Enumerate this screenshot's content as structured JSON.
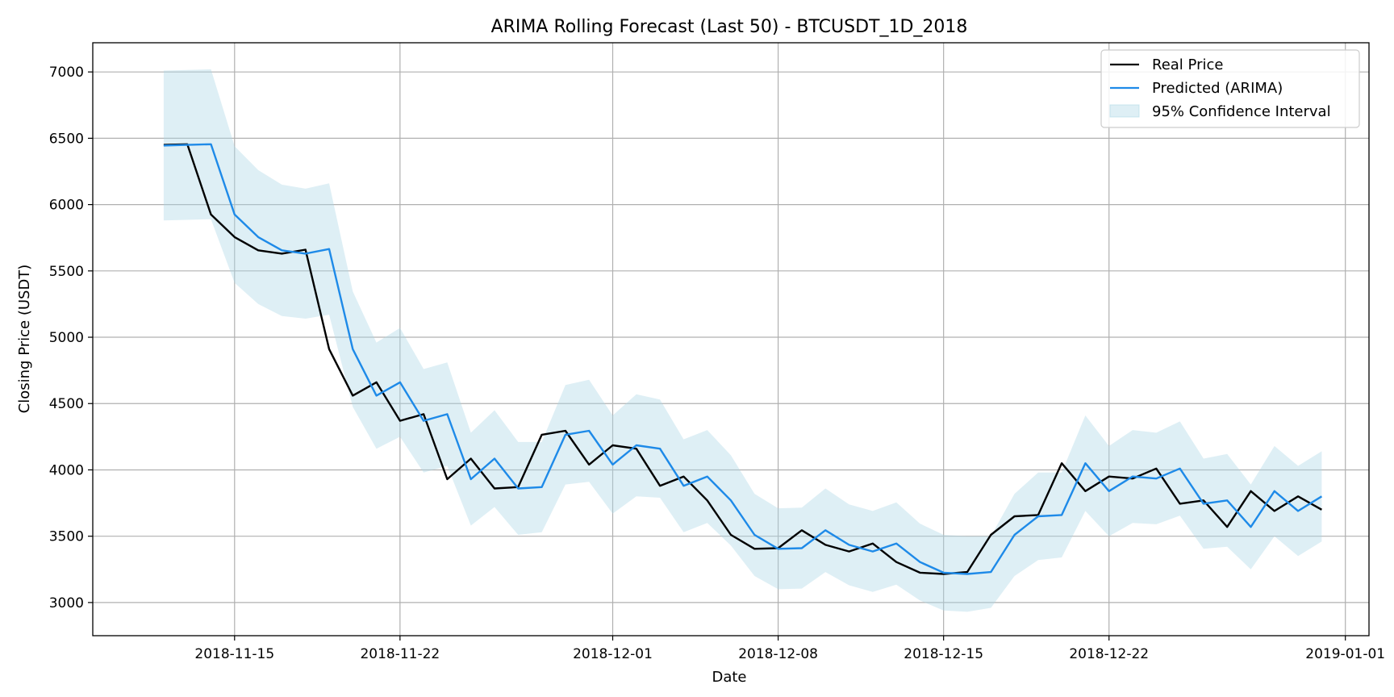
{
  "chart_data": {
    "type": "line",
    "title": "ARIMA Rolling Forecast (Last 50) - BTCUSDT_1D_2018",
    "xlabel": "Date",
    "ylabel": "Closing Price (USDT)",
    "ylim": [
      2750,
      7220
    ],
    "xlim": [
      "2018-11-09",
      "2019-01-02"
    ],
    "grid": true,
    "legend_position": "top-right",
    "x_ticks": [
      "2018-11-15",
      "2018-11-22",
      "2018-12-01",
      "2018-12-08",
      "2018-12-15",
      "2018-12-22",
      "2019-01-01"
    ],
    "y_ticks": [
      3000,
      3500,
      4000,
      4500,
      5000,
      5500,
      6000,
      6500,
      7000
    ],
    "x": [
      "2018-11-12",
      "2018-11-13",
      "2018-11-14",
      "2018-11-15",
      "2018-11-16",
      "2018-11-17",
      "2018-11-18",
      "2018-11-19",
      "2018-11-20",
      "2018-11-21",
      "2018-11-22",
      "2018-11-23",
      "2018-11-24",
      "2018-11-25",
      "2018-11-26",
      "2018-11-27",
      "2018-11-28",
      "2018-11-29",
      "2018-11-30",
      "2018-12-01",
      "2018-12-02",
      "2018-12-03",
      "2018-12-04",
      "2018-12-05",
      "2018-12-06",
      "2018-12-07",
      "2018-12-08",
      "2018-12-09",
      "2018-12-10",
      "2018-12-11",
      "2018-12-12",
      "2018-12-13",
      "2018-12-14",
      "2018-12-15",
      "2018-12-16",
      "2018-12-17",
      "2018-12-18",
      "2018-12-19",
      "2018-12-20",
      "2018-12-21",
      "2018-12-22",
      "2018-12-23",
      "2018-12-24",
      "2018-12-25",
      "2018-12-26",
      "2018-12-27",
      "2018-12-28",
      "2018-12-29",
      "2018-12-30",
      "2018-12-31"
    ],
    "series": [
      {
        "name": "Real Price",
        "color": "#000000",
        "values": [
          6450,
          6455,
          5925,
          5755,
          5655,
          5630,
          5660,
          4910,
          4560,
          4660,
          4370,
          4420,
          3930,
          4085,
          3860,
          3870,
          4265,
          4295,
          4040,
          4185,
          4160,
          3880,
          3950,
          3770,
          3510,
          3405,
          3410,
          3545,
          3435,
          3385,
          3445,
          3305,
          3225,
          3215,
          3230,
          3510,
          3650,
          3660,
          4050,
          3840,
          3950,
          3935,
          4010,
          3745,
          3770,
          3570,
          3840,
          3690,
          3800,
          3700
        ]
      },
      {
        "name": "Predicted (ARIMA)",
        "color": "#1e8ae8",
        "values": [
          6445,
          6450,
          6455,
          5925,
          5755,
          5655,
          5630,
          5665,
          4910,
          4560,
          4660,
          4370,
          4420,
          3930,
          4085,
          3860,
          3870,
          4265,
          4295,
          4040,
          4185,
          4160,
          3880,
          3950,
          3770,
          3510,
          3405,
          3410,
          3545,
          3435,
          3385,
          3445,
          3305,
          3225,
          3215,
          3230,
          3510,
          3650,
          3660,
          4050,
          3840,
          3950,
          3935,
          4010,
          3745,
          3770,
          3570,
          3840,
          3690,
          3800
        ]
      }
    ],
    "confidence_interval": {
      "name": "95% Confidence Interval",
      "color": "#add8e6",
      "upper": [
        7010,
        7015,
        7020,
        6440,
        6260,
        6150,
        6120,
        6160,
        5345,
        4960,
        5070,
        4760,
        4810,
        4280,
        4450,
        4210,
        4210,
        4640,
        4680,
        4410,
        4570,
        4530,
        4230,
        4300,
        4110,
        3820,
        3710,
        3715,
        3860,
        3740,
        3690,
        3755,
        3595,
        3510,
        3500,
        3500,
        3820,
        3980,
        3980,
        4410,
        4180,
        4300,
        4280,
        4365,
        4085,
        4120,
        3890,
        4180,
        4030,
        4140
      ]
    }
  }
}
